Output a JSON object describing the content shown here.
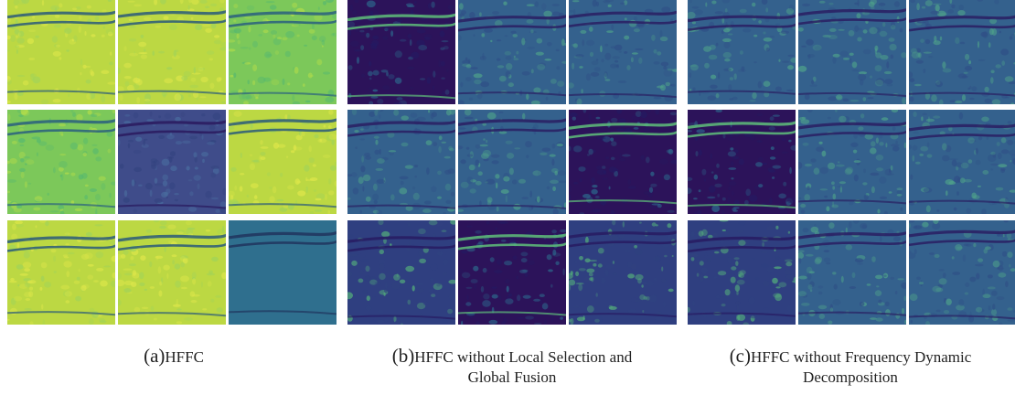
{
  "figure": {
    "panels": [
      {
        "id": "a",
        "caption_label": "(a)",
        "caption_text": "HFFC",
        "caption_lines": [
          "HFFC"
        ],
        "tiles": [
          [
            "yellow-green",
            "yellow-green",
            "green"
          ],
          [
            "green",
            "dark-blue",
            "yellow-green"
          ],
          [
            "yellow-green",
            "yellow-green",
            "teal-flat"
          ]
        ]
      },
      {
        "id": "b",
        "caption_label": "(b)",
        "caption_text": "HFFC without Local Selection and Global Fusion",
        "caption_lines": [
          "HFFC without Local Selection and",
          "Global Fusion"
        ],
        "tiles": [
          [
            "dark-purple",
            "blue",
            "blue"
          ],
          [
            "blue",
            "blue",
            "dark-purple"
          ],
          [
            "blue-dark",
            "dark-purple",
            "blue-dark"
          ]
        ]
      },
      {
        "id": "c",
        "caption_label": "(c)",
        "caption_text": "HFFC without Frequency Dynamic Decomposition",
        "caption_lines": [
          "HFFC without Frequency Dynamic",
          "Decomposition"
        ],
        "tiles": [
          [
            "blue",
            "blue",
            "blue"
          ],
          [
            "dark-purple",
            "blue",
            "blue"
          ],
          [
            "blue-dark",
            "blue",
            "blue"
          ]
        ]
      }
    ],
    "colors": {
      "yellow-green": "#bcd843",
      "green": "#7cc85a",
      "dark-blue": "#3f4c8a",
      "teal-flat": "#2f6f8e",
      "dark-purple": "#2c135a",
      "blue": "#34618d",
      "blue-dark": "#2f3f80"
    }
  }
}
